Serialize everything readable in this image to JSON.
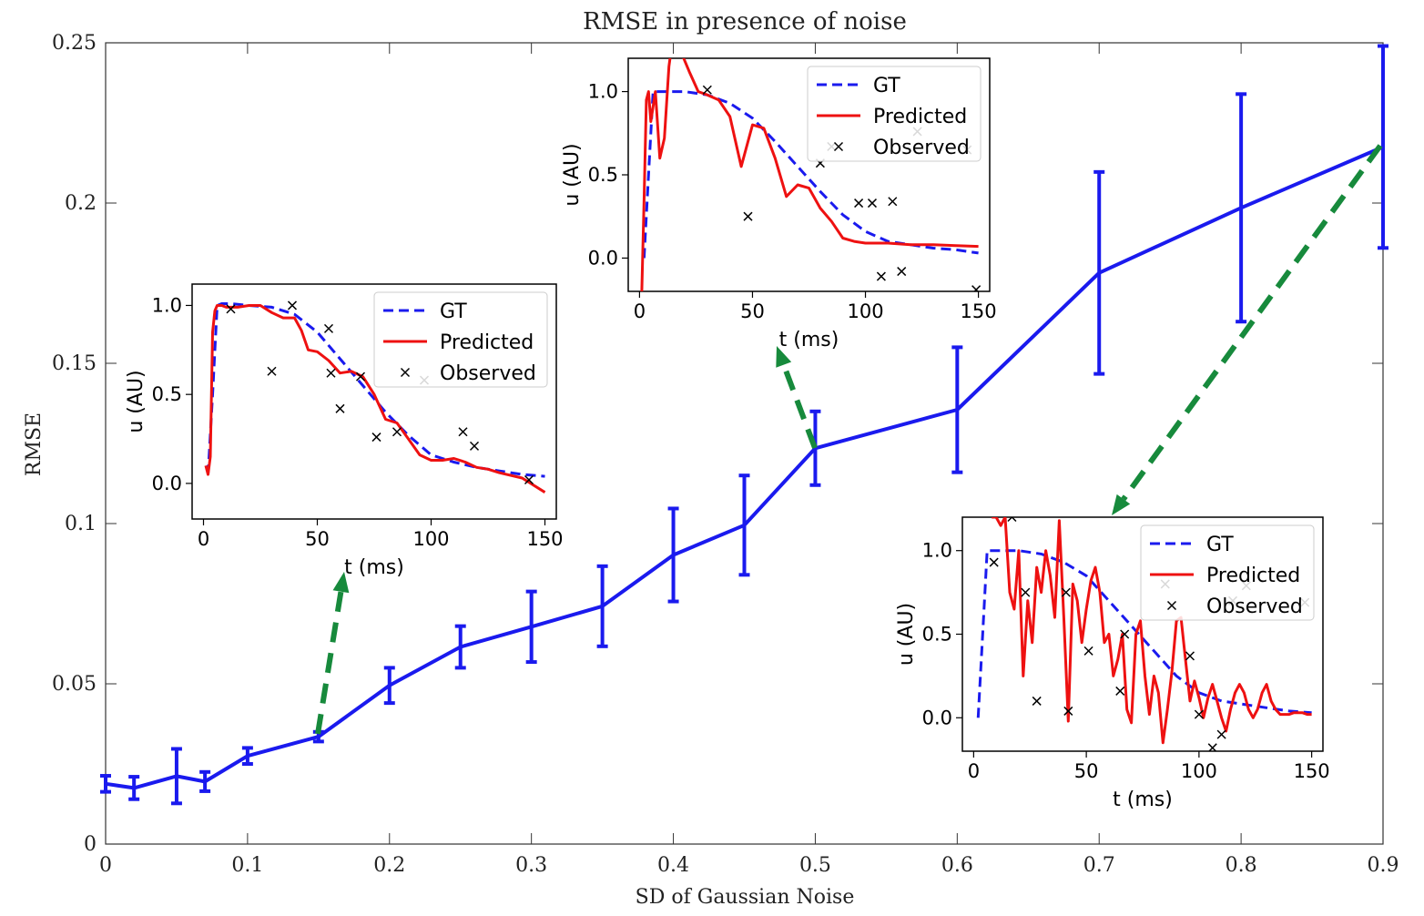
{
  "chart_data": [
    {
      "type": "line",
      "title": "RMSE in presence of noise",
      "xlabel": "SD of Gaussian Noise",
      "ylabel": "RMSE",
      "xlim": [
        0,
        0.9
      ],
      "ylim": [
        0,
        0.25
      ],
      "xticks": [
        0,
        0.1,
        0.2,
        0.3,
        0.4,
        0.5,
        0.6,
        0.7,
        0.8,
        0.9
      ],
      "xtick_labels": [
        "0",
        "0.1",
        "0.2",
        "0.3",
        "0.4",
        "0.5",
        "0.6",
        "0.7",
        "0.8",
        "0.9"
      ],
      "yticks": [
        0,
        0.05,
        0.1,
        0.15,
        0.2,
        0.25
      ],
      "ytick_labels": [
        "0",
        "0.05",
        "0.1",
        "0.15",
        "0.2",
        "0.25"
      ],
      "grid": false,
      "series": [
        {
          "color": "#1a1aee",
          "x": [
            0,
            0.02,
            0.05,
            0.07,
            0.1,
            0.15,
            0.2,
            0.25,
            0.3,
            0.35,
            0.4,
            0.45,
            0.5,
            0.6,
            0.7,
            0.8,
            0.9
          ],
          "y": [
            0.0188,
            0.0175,
            0.0212,
            0.0195,
            0.0275,
            0.0335,
            0.0495,
            0.0615,
            0.0678,
            0.0742,
            0.0902,
            0.0995,
            0.1235,
            0.1355,
            0.1782,
            0.1985,
            0.2175
          ],
          "err": [
            0.0025,
            0.0035,
            0.0085,
            0.003,
            0.0025,
            0.0015,
            0.0055,
            0.0065,
            0.011,
            0.0125,
            0.0145,
            0.0155,
            0.0115,
            0.0195,
            0.0315,
            0.0355,
            0.0315
          ]
        }
      ],
      "annotations_color": "#178a3c"
    },
    {
      "type": "line",
      "inset": "low-noise",
      "xlabel": "t (ms)",
      "ylabel": "u (AU)",
      "xlim": [
        -5,
        155
      ],
      "ylim": [
        -0.2,
        1.12
      ],
      "xticks": [
        0,
        50,
        100,
        150
      ],
      "xtick_labels": [
        "0",
        "50",
        "100",
        "150"
      ],
      "yticks": [
        0,
        0.5,
        1
      ],
      "ytick_labels": [
        "0.0",
        "0.5",
        "1.0"
      ],
      "legend": [
        "GT",
        "Predicted",
        "Observed"
      ],
      "legend_position": "upper-right",
      "gt": {
        "x": [
          2,
          4,
          6,
          8,
          12,
          20,
          30,
          40,
          50,
          60,
          70,
          80,
          90,
          100,
          110,
          120,
          130,
          140,
          150
        ],
        "y": [
          0.05,
          0.5,
          1.0,
          1.01,
          1.01,
          1.0,
          0.99,
          0.95,
          0.85,
          0.7,
          0.55,
          0.4,
          0.27,
          0.16,
          0.12,
          0.09,
          0.07,
          0.05,
          0.04
        ]
      },
      "pred": {
        "x": [
          1,
          2,
          3,
          4,
          5,
          6,
          8,
          10,
          15,
          20,
          25,
          30,
          35,
          40,
          43,
          46,
          50,
          55,
          60,
          65,
          70,
          75,
          80,
          85,
          90,
          95,
          100,
          105,
          110,
          115,
          120,
          125,
          130,
          140,
          150
        ],
        "y": [
          0.1,
          0.05,
          0.15,
          0.85,
          0.97,
          1.0,
          1.0,
          0.99,
          0.99,
          1.0,
          1.0,
          0.96,
          0.93,
          0.93,
          0.86,
          0.75,
          0.74,
          0.69,
          0.62,
          0.63,
          0.6,
          0.5,
          0.36,
          0.34,
          0.25,
          0.16,
          0.13,
          0.13,
          0.14,
          0.12,
          0.09,
          0.08,
          0.06,
          0.03,
          -0.05
        ]
      },
      "observed": {
        "x": [
          12,
          30,
          39,
          55,
          56,
          60,
          69,
          76,
          85,
          97,
          114,
          119,
          143
        ],
        "y": [
          0.98,
          0.63,
          1.0,
          0.87,
          0.62,
          0.42,
          0.6,
          0.26,
          0.29,
          0.58,
          0.29,
          0.21,
          0.02
        ]
      }
    },
    {
      "type": "line",
      "inset": "medium-noise",
      "xlabel": "t (ms)",
      "ylabel": "u (AU)",
      "xlim": [
        -5,
        155
      ],
      "ylim": [
        -0.2,
        1.2
      ],
      "xticks": [
        0,
        50,
        100,
        150
      ],
      "xtick_labels": [
        "0",
        "50",
        "100",
        "150"
      ],
      "yticks": [
        0,
        0.5,
        1
      ],
      "ytick_labels": [
        "0.0",
        "0.5",
        "1.0"
      ],
      "legend": [
        "GT",
        "Predicted",
        "Observed"
      ],
      "legend_position": "upper-right",
      "gt": {
        "x": [
          2,
          4,
          6,
          8,
          12,
          20,
          30,
          40,
          50,
          60,
          70,
          80,
          90,
          100,
          110,
          120,
          130,
          140,
          150
        ],
        "y": [
          0.0,
          0.5,
          1.0,
          1.0,
          1.0,
          1.0,
          0.98,
          0.93,
          0.84,
          0.7,
          0.55,
          0.4,
          0.26,
          0.16,
          0.1,
          0.08,
          0.06,
          0.05,
          0.03
        ]
      },
      "pred": {
        "x": [
          1,
          2,
          3,
          4,
          5,
          7,
          9,
          11,
          13,
          15,
          18,
          22,
          26,
          30,
          35,
          40,
          45,
          50,
          55,
          60,
          65,
          70,
          75,
          80,
          85,
          90,
          95,
          100,
          110,
          120,
          130,
          140,
          150
        ],
        "y": [
          -0.2,
          0.35,
          0.95,
          1.0,
          0.82,
          1.0,
          0.6,
          0.72,
          1.15,
          1.35,
          1.25,
          1.12,
          1.0,
          0.98,
          0.95,
          0.85,
          0.55,
          0.8,
          0.78,
          0.6,
          0.37,
          0.44,
          0.42,
          0.3,
          0.22,
          0.12,
          0.1,
          0.09,
          0.09,
          0.08,
          0.08,
          0.075,
          0.07
        ]
      },
      "observed": {
        "x": [
          30,
          48,
          80,
          85,
          97,
          103,
          107,
          112,
          116,
          123,
          145,
          149
        ],
        "y": [
          1.01,
          0.25,
          0.57,
          0.67,
          0.33,
          0.33,
          -0.11,
          0.34,
          -0.08,
          0.76,
          0.65,
          -0.19
        ]
      }
    },
    {
      "type": "line",
      "inset": "high-noise",
      "xlabel": "t (ms)",
      "ylabel": "u (AU)",
      "xlim": [
        -5,
        155
      ],
      "ylim": [
        -0.2,
        1.2
      ],
      "xticks": [
        0,
        50,
        100,
        150
      ],
      "xtick_labels": [
        "0",
        "50",
        "100",
        "150"
      ],
      "yticks": [
        0,
        0.5,
        1
      ],
      "ytick_labels": [
        "0.0",
        "0.5",
        "1.0"
      ],
      "legend": [
        "GT",
        "Predicted",
        "Observed"
      ],
      "legend_position": "upper-right",
      "gt": {
        "x": [
          2,
          4,
          6,
          8,
          12,
          20,
          30,
          40,
          50,
          60,
          70,
          80,
          90,
          100,
          110,
          120,
          130,
          140,
          150
        ],
        "y": [
          0.0,
          0.5,
          1.0,
          1.0,
          1.0,
          1.0,
          0.98,
          0.93,
          0.85,
          0.7,
          0.55,
          0.4,
          0.25,
          0.15,
          0.1,
          0.08,
          0.06,
          0.04,
          0.03
        ]
      },
      "pred": {
        "x": [
          8,
          10,
          12,
          14,
          16,
          18,
          20,
          22,
          24,
          26,
          28,
          30,
          32,
          34,
          36,
          38,
          40,
          42,
          44,
          46,
          48,
          50,
          52,
          54,
          56,
          58,
          60,
          62,
          64,
          66,
          68,
          70,
          72,
          74,
          76,
          78,
          80,
          82,
          84,
          86,
          88,
          90,
          92,
          94,
          96,
          98,
          100,
          102,
          104,
          106,
          108,
          110,
          112,
          114,
          116,
          118,
          120,
          122,
          124,
          126,
          128,
          130,
          132,
          134,
          136,
          138,
          140,
          142,
          144,
          146,
          148,
          150
        ],
        "y": [
          1.2,
          1.2,
          1.15,
          1.2,
          0.75,
          0.65,
          1.0,
          0.25,
          0.7,
          0.45,
          0.9,
          0.75,
          1.0,
          0.85,
          0.6,
          1.18,
          0.6,
          -0.02,
          0.8,
          0.7,
          0.45,
          0.65,
          0.82,
          0.9,
          0.75,
          0.45,
          0.5,
          0.25,
          0.35,
          0.5,
          0.05,
          -0.03,
          0.5,
          0.58,
          0.25,
          0.02,
          0.25,
          0.15,
          -0.15,
          0.05,
          0.28,
          0.58,
          0.6,
          0.35,
          0.1,
          0.22,
          0.12,
          0.0,
          0.12,
          0.2,
          0.1,
          0.0,
          -0.08,
          0.05,
          0.15,
          0.2,
          0.15,
          0.05,
          0.0,
          0.05,
          0.15,
          0.2,
          0.1,
          0.05,
          0.02,
          0.02,
          0.02,
          0.03,
          0.03,
          0.03,
          0.02,
          0.02
        ]
      },
      "observed": {
        "x": [
          9,
          17,
          23,
          28,
          41,
          42,
          51,
          65,
          67,
          85,
          96,
          100,
          106,
          110,
          115,
          121,
          147
        ],
        "y": [
          0.93,
          1.2,
          0.75,
          0.1,
          0.75,
          0.04,
          0.4,
          0.16,
          0.5,
          0.8,
          0.37,
          0.02,
          -0.18,
          -0.1,
          0.7,
          0.79,
          0.69
        ]
      }
    }
  ]
}
